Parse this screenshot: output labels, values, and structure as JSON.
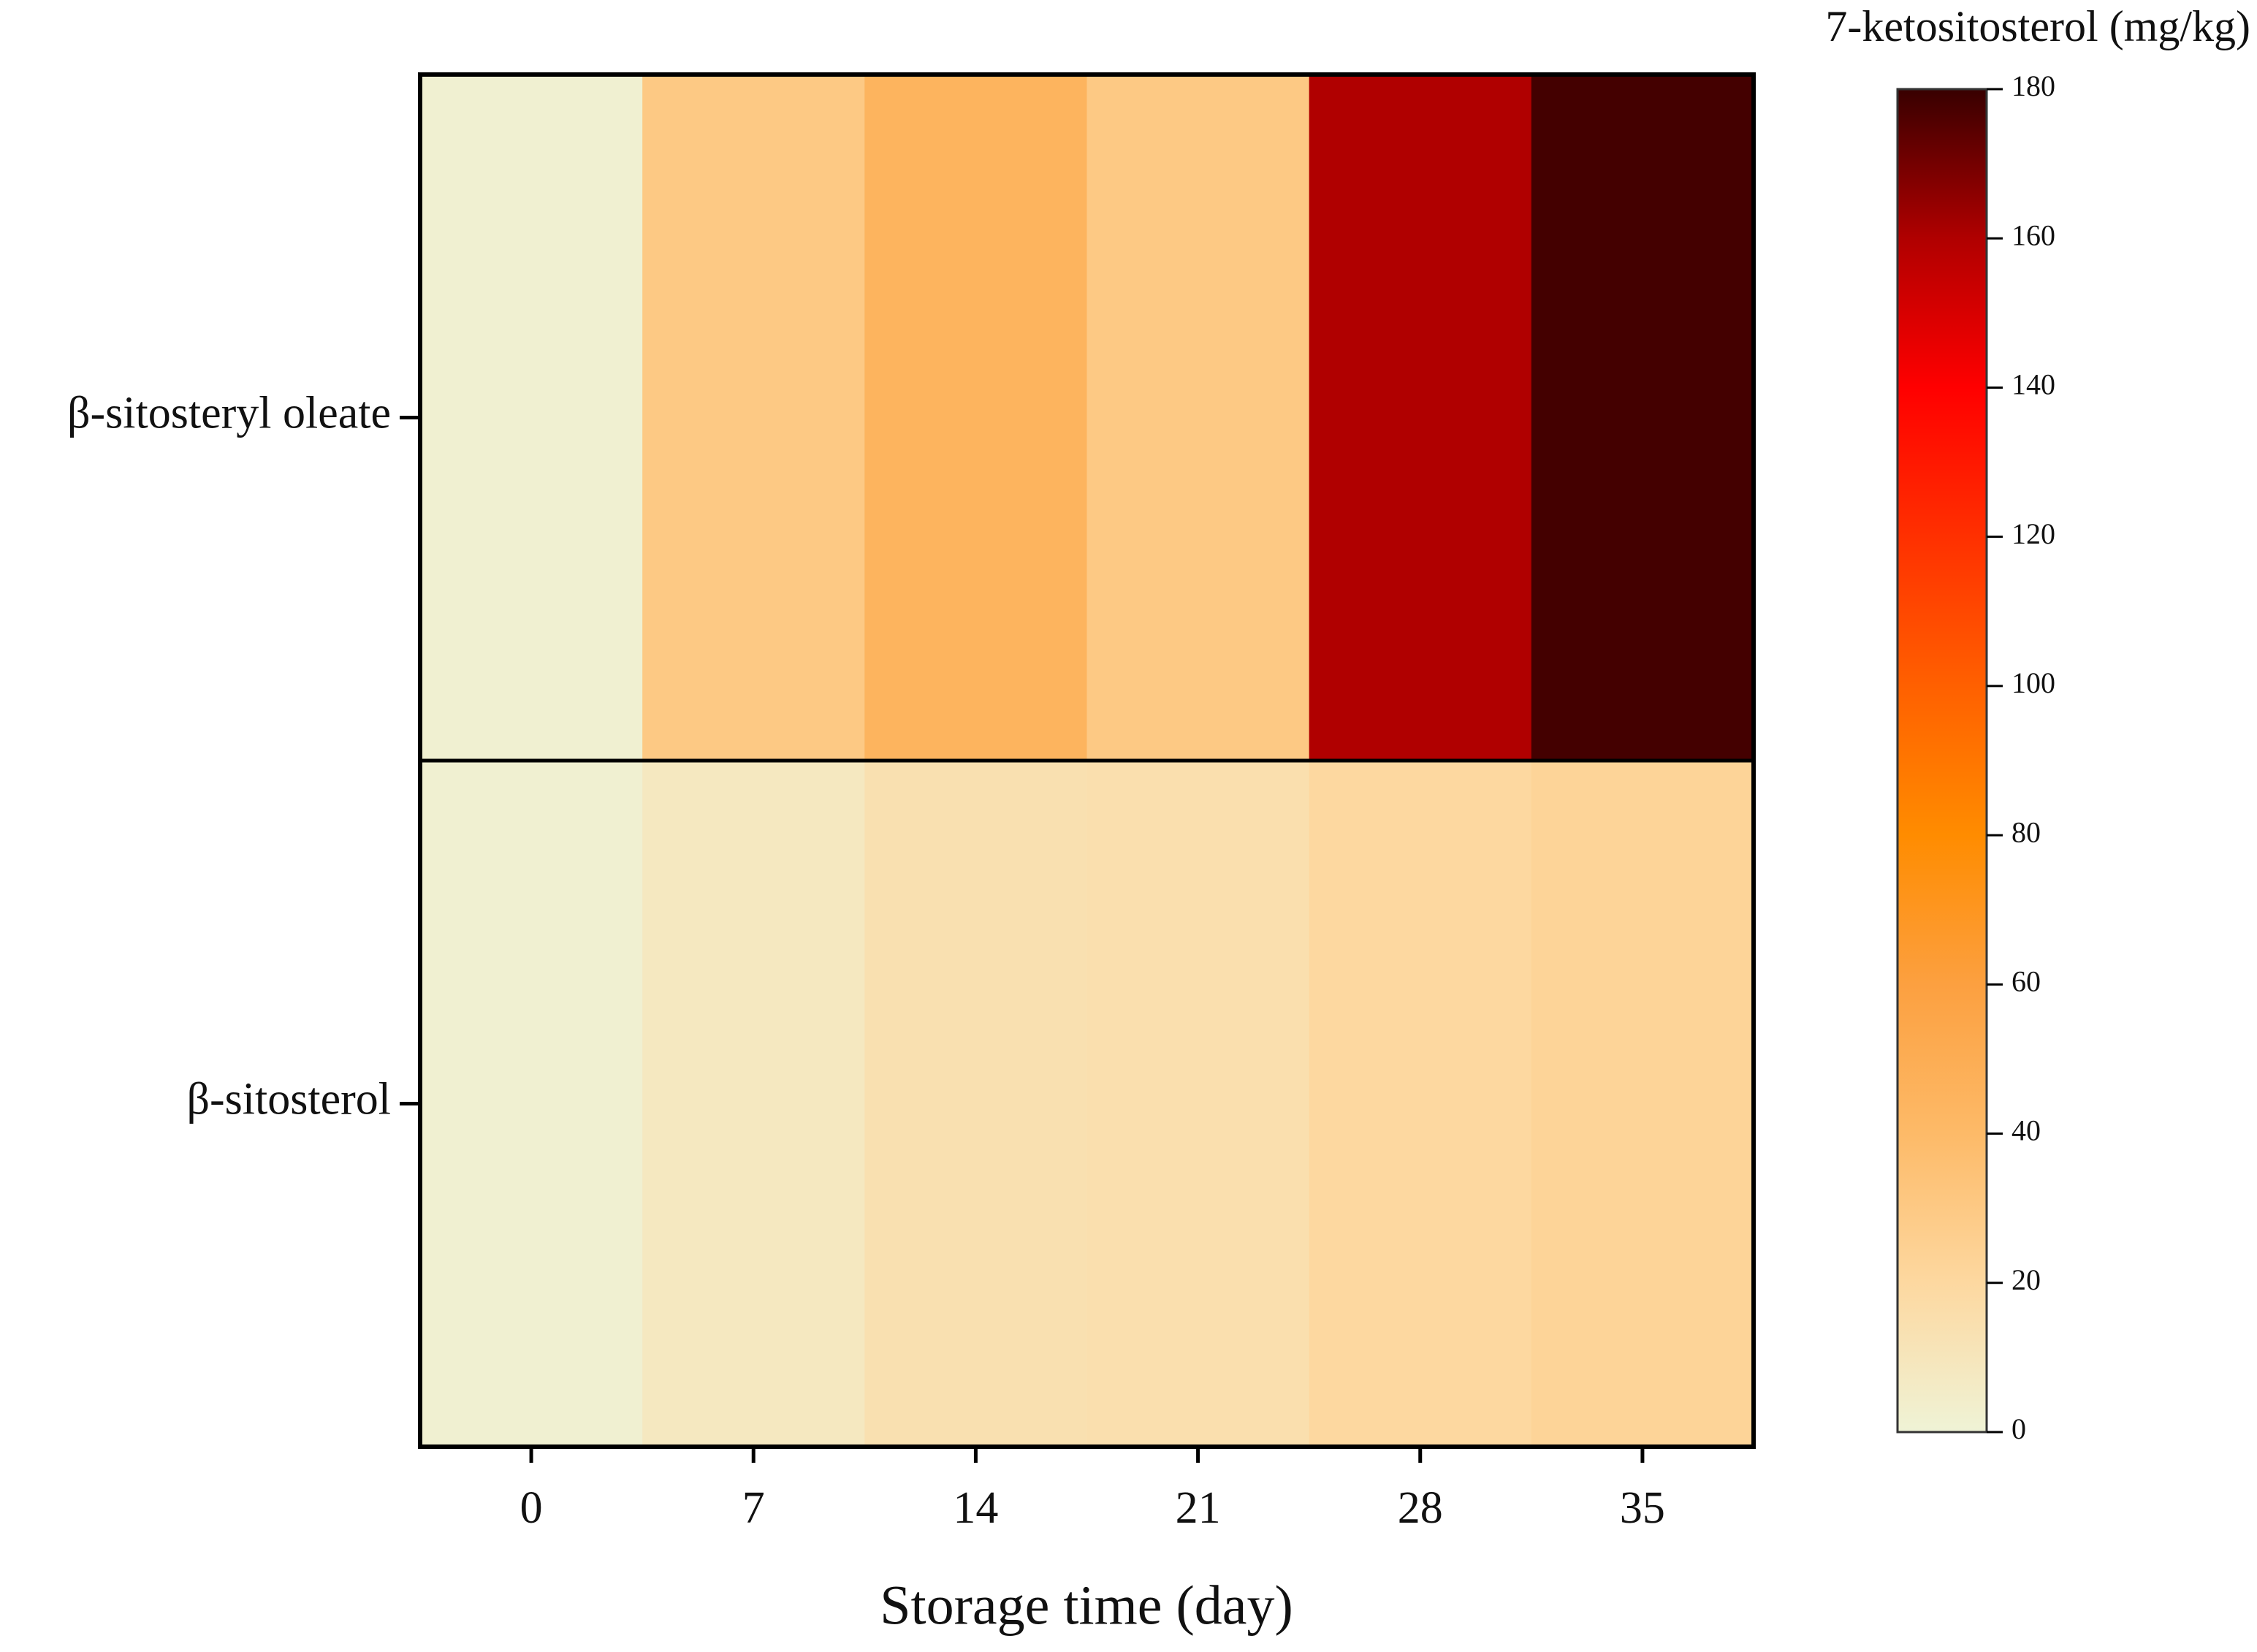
{
  "chart_data": {
    "type": "heatmap",
    "colorbar_title": "7-ketositosterol (mg/kg)",
    "x_label": "Storage time (day)",
    "categories": [
      "0",
      "7",
      "14",
      "21",
      "28",
      "35"
    ],
    "rows": [
      "β-sitosteryl oleate",
      "β-sitosterol"
    ],
    "values": [
      [
        2,
        30,
        45,
        30,
        160,
        178
      ],
      [
        2,
        8,
        14,
        15,
        20,
        23
      ]
    ],
    "clim": [
      0,
      180
    ],
    "cticks": [
      0,
      20,
      40,
      60,
      80,
      100,
      120,
      140,
      160,
      180
    ],
    "colorscale": [
      {
        "value": 0,
        "color": "#eff3d6"
      },
      {
        "value": 20,
        "color": "#fdd8a0"
      },
      {
        "value": 40,
        "color": "#fdba68"
      },
      {
        "value": 60,
        "color": "#fca040"
      },
      {
        "value": 80,
        "color": "#ff8c00"
      },
      {
        "value": 100,
        "color": "#ff6000"
      },
      {
        "value": 120,
        "color": "#ff3000"
      },
      {
        "value": 140,
        "color": "#ff0000"
      },
      {
        "value": 160,
        "color": "#b00000"
      },
      {
        "value": 180,
        "color": "#380000"
      }
    ]
  }
}
